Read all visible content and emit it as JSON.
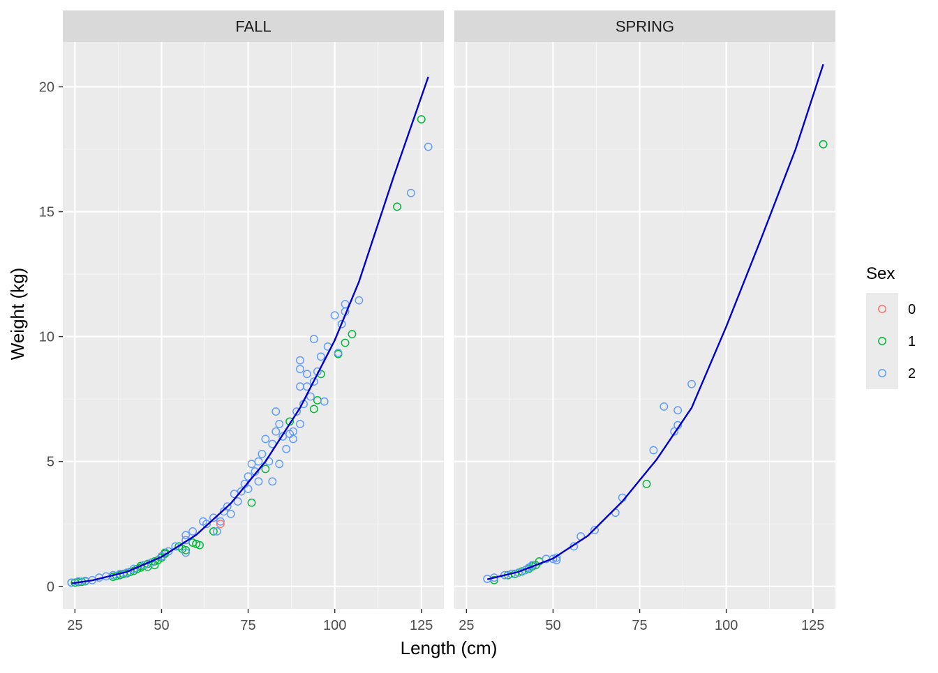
{
  "chart_data": {
    "type": "scatter",
    "xlabel": "Length (cm)",
    "ylabel": "Weight (kg)",
    "xlim": [
      21.5,
      131.5
    ],
    "ylim": [
      -0.9,
      21.8
    ],
    "x_ticks": [
      25,
      50,
      75,
      100,
      125
    ],
    "y_ticks": [
      0,
      5,
      10,
      15,
      20
    ],
    "grid": true,
    "legend": {
      "title": "Sex",
      "placement": "right",
      "entries": [
        {
          "label": "0",
          "color": "#F8766D"
        },
        {
          "label": "1",
          "color": "#00BA38"
        },
        {
          "label": "2",
          "color": "#619CFF"
        }
      ]
    },
    "fit_line_color": "#0000CD",
    "panels": [
      {
        "label": "FALL",
        "series": [
          {
            "sex": "0",
            "points": [
              [
                67,
                2.5
              ]
            ]
          },
          {
            "sex": "1",
            "points": [
              [
                24,
                0.15
              ],
              [
                25,
                0.15
              ],
              [
                26,
                0.17
              ],
              [
                27,
                0.18
              ],
              [
                28,
                0.2
              ],
              [
                36,
                0.38
              ],
              [
                37,
                0.42
              ],
              [
                38,
                0.45
              ],
              [
                39,
                0.5
              ],
              [
                40,
                0.52
              ],
              [
                41,
                0.58
              ],
              [
                42,
                0.62
              ],
              [
                43,
                0.7
              ],
              [
                44,
                0.75
              ],
              [
                44,
                0.82
              ],
              [
                45,
                0.85
              ],
              [
                46,
                0.9
              ],
              [
                46,
                0.78
              ],
              [
                47,
                0.95
              ],
              [
                48,
                0.85
              ],
              [
                48,
                1.0
              ],
              [
                49,
                1.05
              ],
              [
                50,
                1.15
              ],
              [
                50,
                1.2
              ],
              [
                51,
                1.3
              ],
              [
                51,
                1.35
              ],
              [
                55,
                1.6
              ],
              [
                56,
                1.5
              ],
              [
                57,
                1.45
              ],
              [
                59,
                1.75
              ],
              [
                60,
                1.7
              ],
              [
                61,
                1.65
              ],
              [
                65,
                2.2
              ],
              [
                76,
                3.35
              ],
              [
                80,
                4.7
              ],
              [
                87,
                6.6
              ],
              [
                94,
                7.1
              ],
              [
                95,
                7.45
              ],
              [
                96,
                8.5
              ],
              [
                101,
                9.3
              ],
              [
                103,
                9.75
              ],
              [
                105,
                10.1
              ],
              [
                118,
                15.2
              ],
              [
                125,
                18.7
              ]
            ]
          },
          {
            "sex": "2",
            "points": [
              [
                24,
                0.15
              ],
              [
                26,
                0.2
              ],
              [
                28,
                0.22
              ],
              [
                30,
                0.25
              ],
              [
                32,
                0.35
              ],
              [
                34,
                0.4
              ],
              [
                36,
                0.45
              ],
              [
                38,
                0.5
              ],
              [
                40,
                0.55
              ],
              [
                42,
                0.7
              ],
              [
                45,
                0.85
              ],
              [
                47,
                0.95
              ],
              [
                50,
                1.2
              ],
              [
                52,
                1.4
              ],
              [
                54,
                1.6
              ],
              [
                57,
                1.35
              ],
              [
                57,
                1.85
              ],
              [
                57,
                2.05
              ],
              [
                59,
                2.2
              ],
              [
                62,
                2.6
              ],
              [
                63,
                2.5
              ],
              [
                65,
                2.75
              ],
              [
                66,
                2.2
              ],
              [
                67,
                2.6
              ],
              [
                68,
                3.0
              ],
              [
                69,
                3.2
              ],
              [
                70,
                2.9
              ],
              [
                71,
                3.7
              ],
              [
                72,
                3.4
              ],
              [
                73,
                3.8
              ],
              [
                74,
                4.1
              ],
              [
                75,
                3.9
              ],
              [
                75,
                4.4
              ],
              [
                76,
                4.9
              ],
              [
                77,
                4.6
              ],
              [
                78,
                4.2
              ],
              [
                78,
                5.0
              ],
              [
                79,
                5.3
              ],
              [
                80,
                5.9
              ],
              [
                81,
                5.0
              ],
              [
                82,
                4.2
              ],
              [
                82,
                5.7
              ],
              [
                83,
                6.2
              ],
              [
                83,
                7.0
              ],
              [
                84,
                4.9
              ],
              [
                84,
                6.5
              ],
              [
                85,
                6.0
              ],
              [
                86,
                5.5
              ],
              [
                87,
                6.1
              ],
              [
                88,
                6.2
              ],
              [
                88,
                5.9
              ],
              [
                89,
                7.0
              ],
              [
                90,
                6.5
              ],
              [
                90,
                8.0
              ],
              [
                90,
                8.7
              ],
              [
                90,
                9.05
              ],
              [
                91,
                7.3
              ],
              [
                92,
                8.5
              ],
              [
                92,
                8.0
              ],
              [
                93,
                7.6
              ],
              [
                94,
                8.2
              ],
              [
                94,
                9.9
              ],
              [
                95,
                8.6
              ],
              [
                96,
                9.2
              ],
              [
                97,
                7.4
              ],
              [
                98,
                9.6
              ],
              [
                100,
                10.85
              ],
              [
                101,
                9.35
              ],
              [
                102,
                10.5
              ],
              [
                103,
                11.0
              ],
              [
                103,
                11.3
              ],
              [
                107,
                11.45
              ],
              [
                122,
                15.75
              ],
              [
                127,
                17.6
              ]
            ]
          }
        ],
        "fit_curve": [
          [
            24,
            0.12
          ],
          [
            30,
            0.24
          ],
          [
            40,
            0.58
          ],
          [
            50,
            1.18
          ],
          [
            60,
            2.06
          ],
          [
            70,
            3.32
          ],
          [
            80,
            5.0
          ],
          [
            90,
            7.15
          ],
          [
            100,
            9.85
          ],
          [
            107,
            12.2
          ],
          [
            117,
            16.4
          ],
          [
            127,
            20.4
          ]
        ]
      },
      {
        "label": "SPRING",
        "series": [
          {
            "sex": "0",
            "points": []
          },
          {
            "sex": "1",
            "points": [
              [
                33,
                0.25
              ],
              [
                37,
                0.45
              ],
              [
                39,
                0.5
              ],
              [
                41,
                0.6
              ],
              [
                43,
                0.7
              ],
              [
                44,
                0.8
              ],
              [
                45,
                0.85
              ],
              [
                46,
                1.0
              ],
              [
                77,
                4.1
              ],
              [
                128,
                17.7
              ]
            ]
          },
          {
            "sex": "2",
            "points": [
              [
                31,
                0.3
              ],
              [
                33,
                0.35
              ],
              [
                36,
                0.45
              ],
              [
                38,
                0.5
              ],
              [
                40,
                0.55
              ],
              [
                42,
                0.65
              ],
              [
                43,
                0.75
              ],
              [
                44,
                0.85
              ],
              [
                48,
                1.1
              ],
              [
                50,
                1.1
              ],
              [
                51,
                1.05
              ],
              [
                51,
                1.15
              ],
              [
                56,
                1.6
              ],
              [
                58,
                2.0
              ],
              [
                62,
                2.25
              ],
              [
                68,
                2.95
              ],
              [
                70,
                3.55
              ],
              [
                79,
                5.45
              ],
              [
                82,
                7.2
              ],
              [
                85,
                6.2
              ],
              [
                86,
                7.05
              ],
              [
                86,
                6.45
              ],
              [
                90,
                8.1
              ]
            ]
          }
        ],
        "fit_curve": [
          [
            31,
            0.28
          ],
          [
            40,
            0.58
          ],
          [
            50,
            1.12
          ],
          [
            60,
            2.02
          ],
          [
            70,
            3.4
          ],
          [
            80,
            5.1
          ],
          [
            90,
            7.15
          ],
          [
            100,
            10.4
          ],
          [
            110,
            13.9
          ],
          [
            120,
            17.5
          ],
          [
            128,
            20.9
          ]
        ]
      }
    ]
  }
}
